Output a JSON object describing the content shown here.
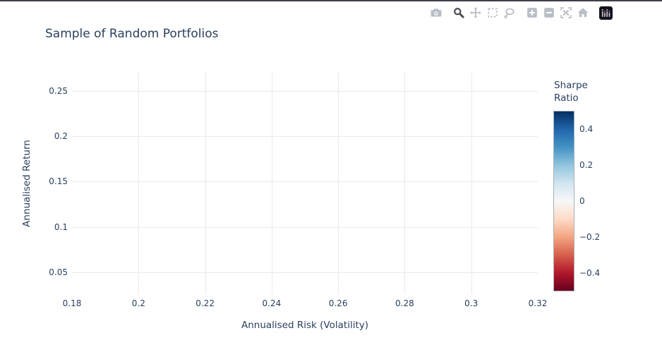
{
  "title": "Sample of Random Portfolios",
  "colors": {
    "background": "#ffffff",
    "text": "#2a3f5f",
    "gridline": "#e5e9f0",
    "modebar_inactive": "#b9bec6",
    "modebar_active": "#4d5058"
  },
  "modebar": {
    "buttons": [
      {
        "name": "download-png",
        "icon": "camera-icon",
        "active": false
      },
      {
        "name": "zoom",
        "icon": "magnifier-icon",
        "active": true
      },
      {
        "name": "pan",
        "icon": "pan-arrows-icon",
        "active": false
      },
      {
        "name": "box-select",
        "icon": "dashed-box-icon",
        "active": false
      },
      {
        "name": "lasso-select",
        "icon": "lasso-icon",
        "active": false
      },
      {
        "name": "zoom-in",
        "icon": "plus-square-icon",
        "active": false
      },
      {
        "name": "zoom-out",
        "icon": "minus-square-icon",
        "active": false
      },
      {
        "name": "autoscale",
        "icon": "expand-x-icon",
        "active": false
      },
      {
        "name": "reset-axes",
        "icon": "home-icon",
        "active": false
      },
      {
        "name": "plotly-logo",
        "icon": "plotly-logo-icon",
        "active": false
      }
    ]
  },
  "chart_data": {
    "type": "scatter",
    "title": "Sample of Random Portfolios",
    "xlabel": "Annualised Risk (Volatility)",
    "ylabel": "Annualised Return",
    "xlim": [
      0.18,
      0.32
    ],
    "ylim": [
      0.026,
      0.27
    ],
    "grid": true,
    "points": [],
    "x_ticks": {
      "values": [
        0.18,
        0.2,
        0.22,
        0.24,
        0.26,
        0.28,
        0.3,
        0.32
      ],
      "labels": [
        "0.18",
        "0.2",
        "0.22",
        "0.24",
        "0.26",
        "0.28",
        "0.3",
        "0.32"
      ]
    },
    "y_ticks": {
      "values": [
        0.05,
        0.1,
        0.15,
        0.2,
        0.25
      ],
      "labels": [
        "0.05",
        "0.1",
        "0.15",
        "0.2",
        "0.25"
      ]
    },
    "colorbar": {
      "title_lines": [
        "Sharpe",
        "Ratio"
      ],
      "range": [
        -0.5,
        0.5
      ],
      "tick_values": [
        0.4,
        0.2,
        0,
        -0.2,
        -0.4
      ],
      "tick_labels": [
        "0.4",
        "0.2",
        "0",
        "−0.2",
        "−0.4"
      ],
      "colorscale_name": "RdBu",
      "gradient_top_to_bottom": [
        "#053061",
        "#2166ac",
        "#4393c3",
        "#92c5de",
        "#d1e5f0",
        "#f7f7f7",
        "#fddbc7",
        "#f4a582",
        "#d6604d",
        "#b2182b",
        "#67001f"
      ]
    }
  }
}
